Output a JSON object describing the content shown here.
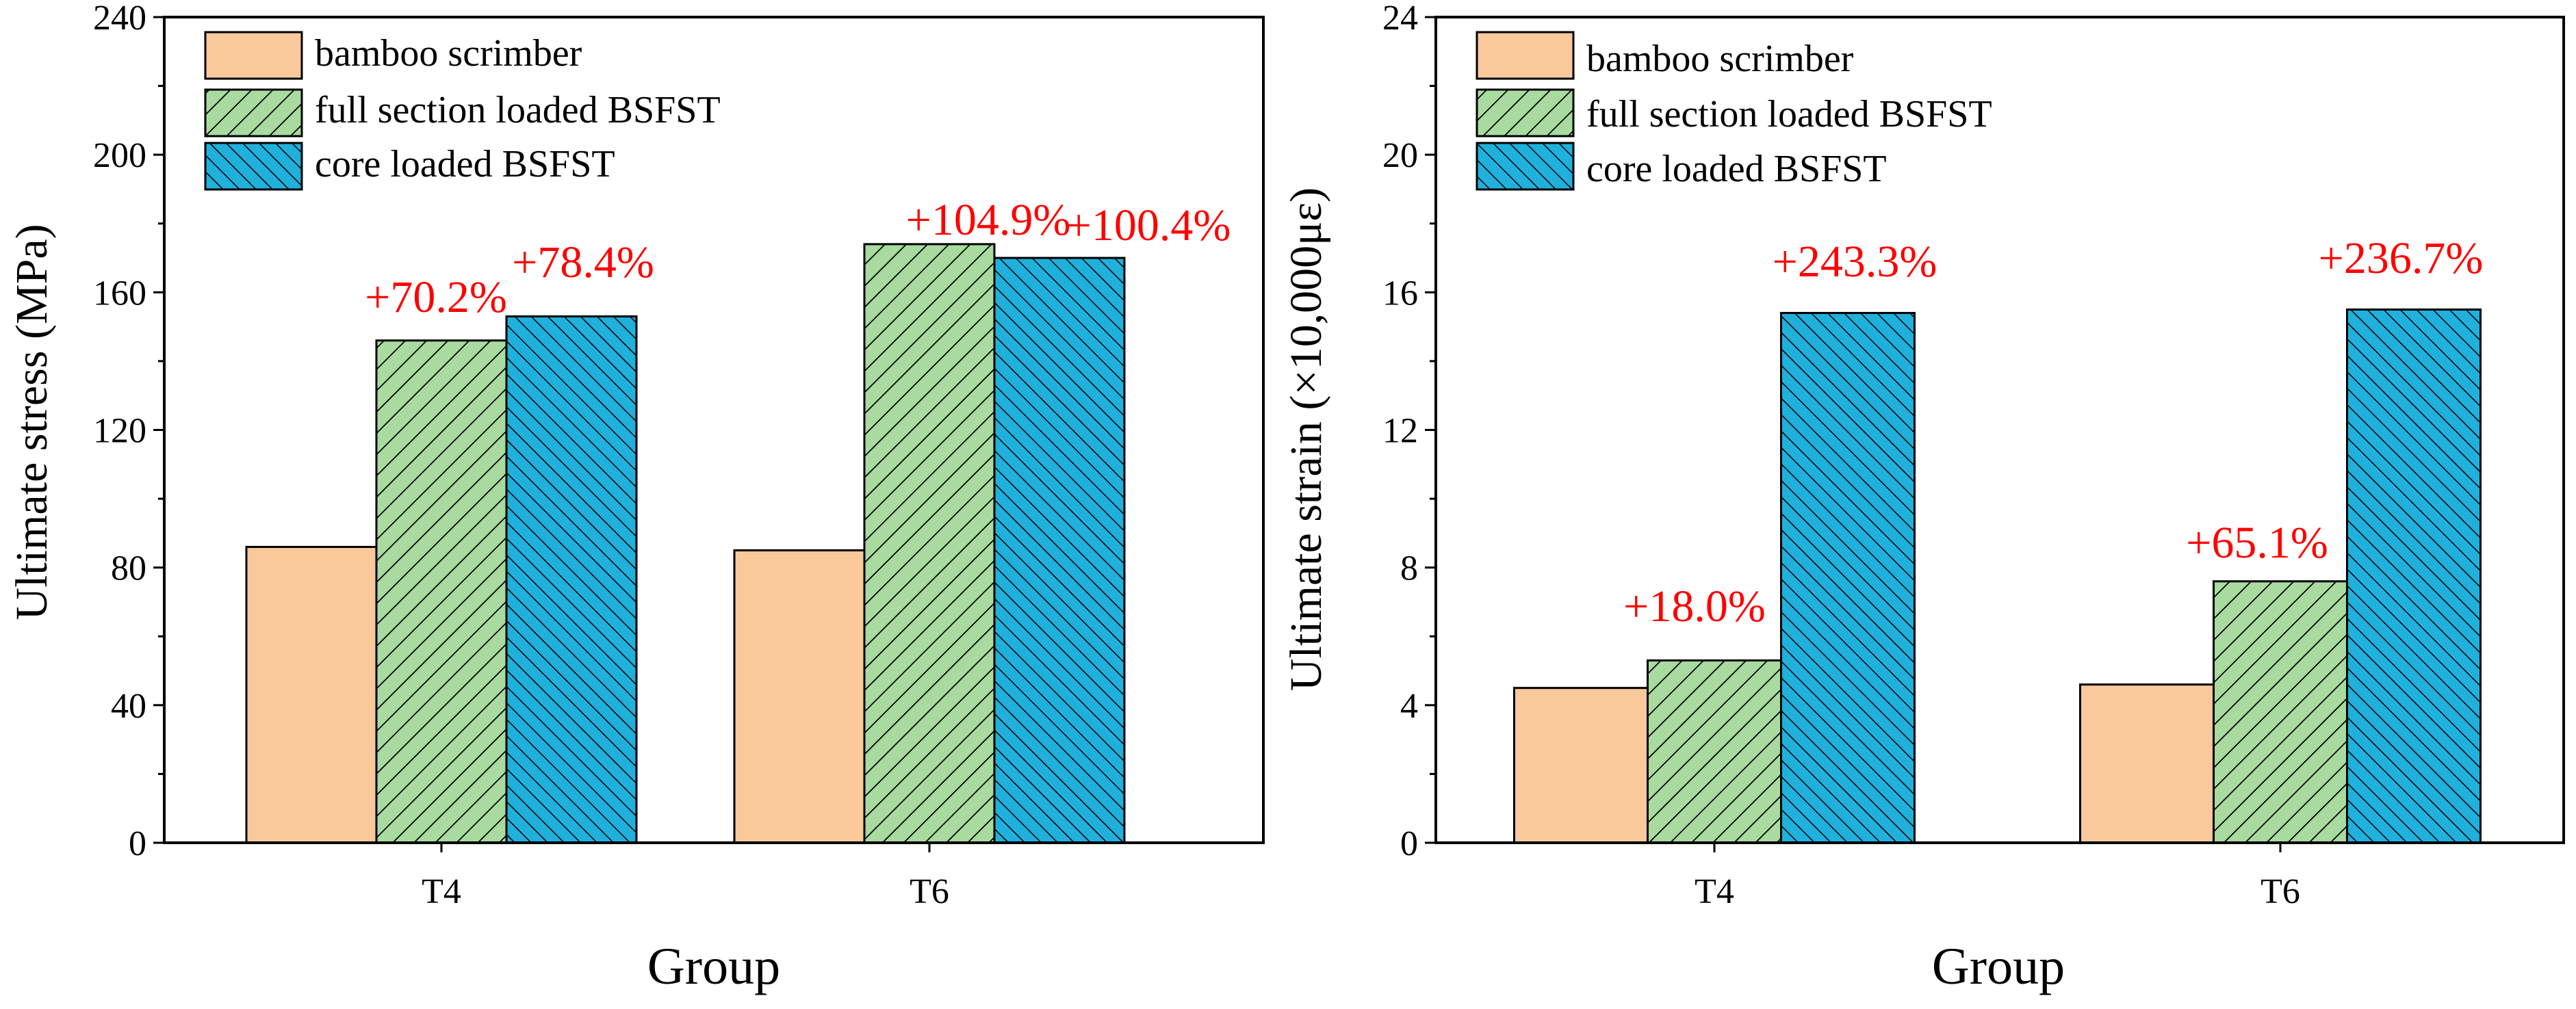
{
  "colors": {
    "bamboo": "#F9C89B",
    "full": "#A9DBA0",
    "core": "#1FB0DC",
    "annotation": "#FF0000",
    "axis": "#000000"
  },
  "chart_data": [
    {
      "type": "bar",
      "title": "",
      "xlabel": "Group",
      "ylabel": "Ultimate stress (MPa)",
      "ylim": [
        0,
        240
      ],
      "yticks": [
        0,
        40,
        80,
        120,
        160,
        200,
        240
      ],
      "ytick_labels": [
        "0",
        "40",
        "80",
        "120",
        "160",
        "200",
        "240"
      ],
      "categories": [
        "T4",
        "T6"
      ],
      "legend_position": "top-left",
      "series": [
        {
          "name": "bamboo scrimber",
          "values": [
            86,
            85
          ],
          "pattern": "solid",
          "annotations": [
            "",
            ""
          ]
        },
        {
          "name": "full section loaded BSFST",
          "values": [
            146,
            174
          ],
          "pattern": "hatch-forward",
          "annotations": [
            "+70.2%",
            "+104.9%"
          ]
        },
        {
          "name": "core loaded BSFST",
          "values": [
            153,
            170
          ],
          "pattern": "hatch-back",
          "annotations": [
            "+78.4%",
            "+100.4%"
          ]
        }
      ]
    },
    {
      "type": "bar",
      "title": "",
      "xlabel": "Group",
      "ylabel": "Ultimate strain (×10,000με)",
      "ylim": [
        0,
        24
      ],
      "yticks": [
        0,
        4,
        8,
        12,
        16,
        20,
        24
      ],
      "ytick_labels": [
        "0",
        "4",
        "8",
        "12",
        "16",
        "20",
        "24"
      ],
      "categories": [
        "T4",
        "T6"
      ],
      "legend_position": "top-left",
      "series": [
        {
          "name": "bamboo scrimber",
          "values": [
            4.5,
            4.6
          ],
          "pattern": "solid",
          "annotations": [
            "",
            ""
          ]
        },
        {
          "name": "full section loaded BSFST",
          "values": [
            5.3,
            7.6
          ],
          "pattern": "hatch-forward",
          "annotations": [
            "+18.0%",
            "+65.1%"
          ]
        },
        {
          "name": "core loaded BSFST",
          "values": [
            15.4,
            15.5
          ],
          "pattern": "hatch-back",
          "annotations": [
            "+243.3%",
            "+236.7%"
          ]
        }
      ]
    }
  ]
}
